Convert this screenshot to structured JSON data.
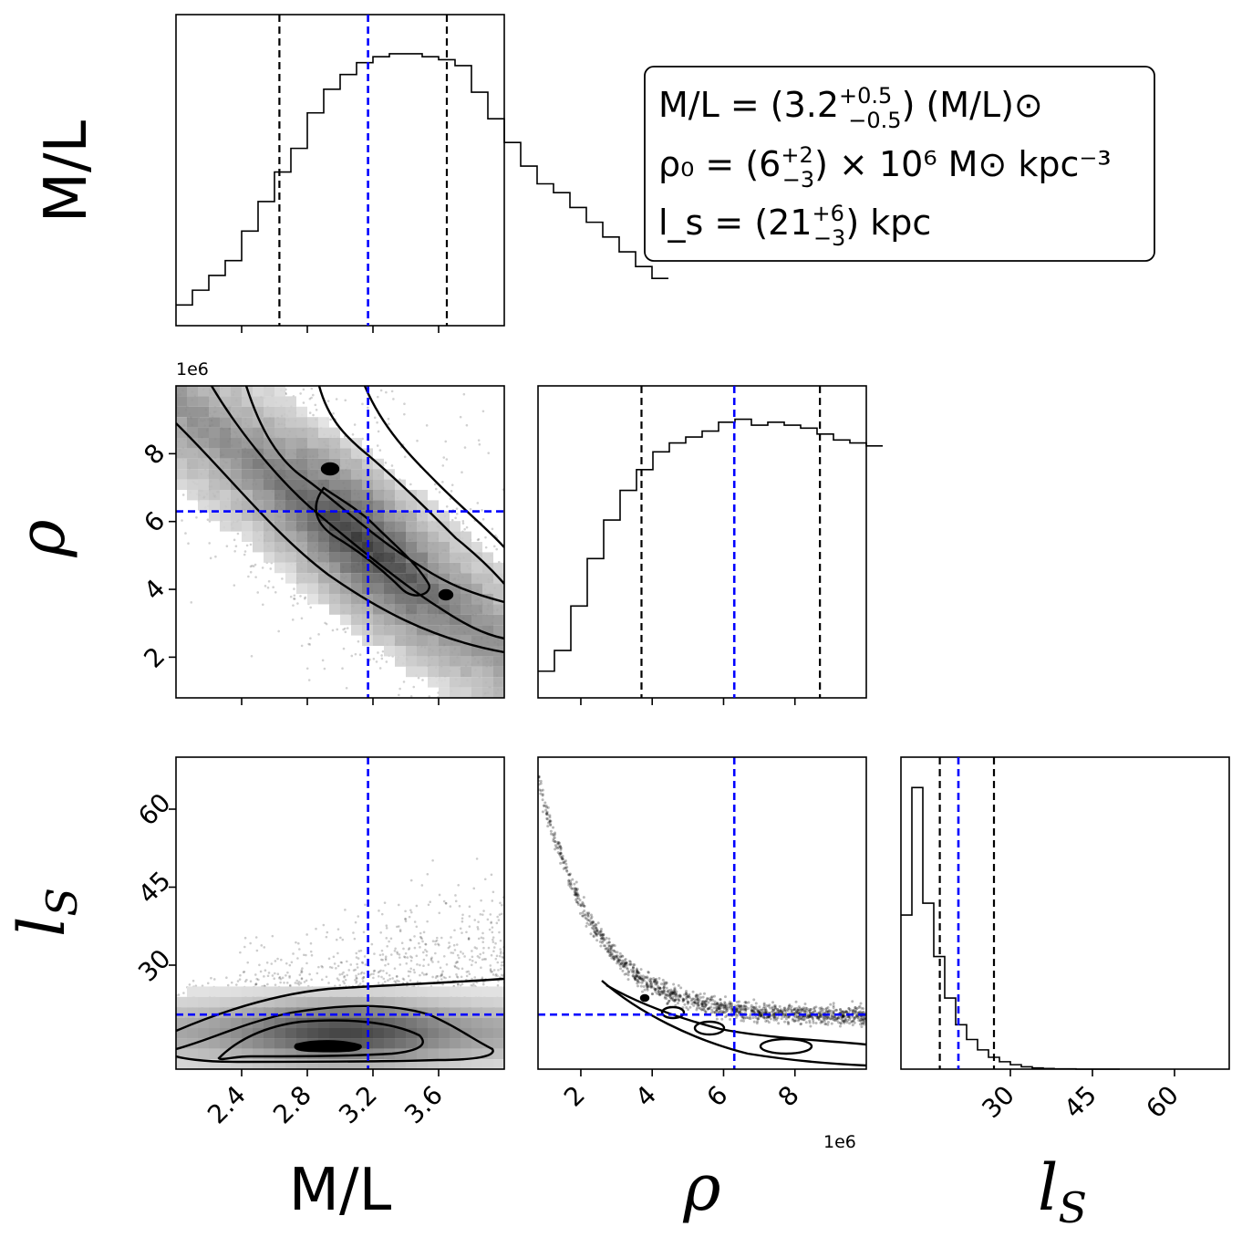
{
  "chart_data": {
    "type": "corner",
    "parameters": [
      {
        "label": "M/L",
        "range": [
          2.0,
          4.0
        ],
        "ticks": [
          2.4,
          2.8,
          3.2,
          3.6
        ],
        "tick_labels": [
          "2.4",
          "2.8",
          "3.2",
          "3.6"
        ],
        "median": 3.17,
        "lower": 2.63,
        "upper": 3.65
      },
      {
        "label": "ρ",
        "offset": "1e6",
        "range": [
          0.8,
          10.0
        ],
        "ticks": [
          2,
          4,
          6,
          8
        ],
        "tick_labels": [
          "2",
          "4",
          "6",
          "8"
        ],
        "median": 6.3,
        "lower": 3.7,
        "upper": 8.7
      },
      {
        "label": "l_s",
        "range": [
          10,
          70
        ],
        "ticks": [
          30,
          45,
          60
        ],
        "tick_labels": [
          "30",
          "45",
          "60"
        ],
        "median": 20.5,
        "lower": 17.1,
        "upper": 27.0
      }
    ],
    "marginals": {
      "M/L": {
        "bin_edges_start": 2.0,
        "bin_width": 0.1,
        "counts": [
          0.07,
          0.12,
          0.17,
          0.22,
          0.32,
          0.42,
          0.52,
          0.6,
          0.72,
          0.8,
          0.85,
          0.89,
          0.91,
          0.92,
          0.92,
          0.91,
          0.9,
          0.88,
          0.79,
          0.7,
          0.62,
          0.54,
          0.48,
          0.45,
          0.4,
          0.35,
          0.3,
          0.25,
          0.2,
          0.16
        ]
      },
      "ρ": {
        "bin_edges_start": 0.8,
        "bin_width": 0.46,
        "counts": [
          0.09,
          0.16,
          0.31,
          0.47,
          0.6,
          0.7,
          0.77,
          0.83,
          0.86,
          0.88,
          0.9,
          0.93,
          0.94,
          0.92,
          0.93,
          0.92,
          0.91,
          0.89,
          0.87,
          0.86,
          0.85
        ]
      },
      "l_s": {
        "bin_edges_start": 10,
        "bin_width": 2.0,
        "counts": [
          0.52,
          0.95,
          0.56,
          0.38,
          0.24,
          0.15,
          0.1,
          0.065,
          0.04,
          0.025,
          0.015,
          0.008,
          0.004,
          0.002,
          0.001,
          0.001,
          0.0,
          0.0,
          0.0,
          0.0
        ]
      }
    },
    "legend": {
      "position": "top-right",
      "line1": {
        "prefix": "M/L = (3.2",
        "sup": "+0.5",
        "sub": "−0.5",
        "suffix": ") (M/L)⊙"
      },
      "line2": {
        "prefix": "ρ₀ = (6",
        "sup": "+2",
        "sub": "−3",
        "suffix": ") × 10⁶ M⊙ kpc⁻³"
      },
      "line3": {
        "prefix": "l_s = (21",
        "sup": "+6",
        "sub": "−3",
        "suffix": ") kpc"
      }
    },
    "colors": {
      "median_line": "#0000ff",
      "quantile_line": "#000000",
      "points": "#000000"
    }
  }
}
